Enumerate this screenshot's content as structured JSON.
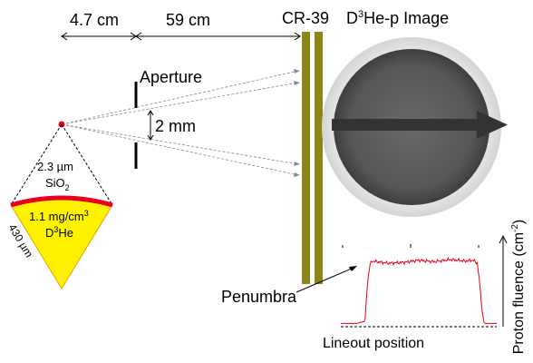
{
  "dimensions": {
    "d1": "4.7 cm",
    "d2": "59 cm"
  },
  "labels": {
    "cr39": "CR-39",
    "image_title_sup_base": "D",
    "image_title_sup": "3",
    "image_title_rest": "He-p Image",
    "aperture": "Aperture",
    "aperture_gap": "2 mm",
    "shell_thickness": "2.3 µm",
    "shell_material_base": "SiO",
    "shell_material_sub": "2",
    "fill_density_base": "1.1 mg/cm",
    "fill_density_sup": "3",
    "fill_gas_base": "D",
    "fill_gas_sup": "3",
    "fill_gas_rest": "He",
    "radius": "430 µm",
    "penumbra": "Penumbra",
    "lineout_position": "Lineout position",
    "y_axis_base": "Proton fluence (cm",
    "y_axis_sup": "-2",
    "y_axis_end": ")"
  },
  "colors": {
    "detector": "#8c8518",
    "shell": "#e8001c",
    "gas_fill": "#fff200",
    "lineout": "#e8001c"
  },
  "chart_data": {
    "type": "line",
    "xlabel": "Lineout position",
    "ylabel": "Proton fluence (cm-2)",
    "x": [
      0.0,
      0.1,
      0.155,
      0.17,
      0.185,
      0.2,
      0.3,
      0.4,
      0.5,
      0.6,
      0.7,
      0.8,
      0.85,
      0.875,
      0.89,
      0.905,
      0.92,
      1.0
    ],
    "y": [
      0.02,
      0.02,
      0.05,
      0.55,
      0.82,
      0.88,
      0.85,
      0.86,
      0.89,
      0.87,
      0.9,
      0.88,
      0.89,
      0.85,
      0.6,
      0.2,
      0.02,
      0.02
    ]
  }
}
